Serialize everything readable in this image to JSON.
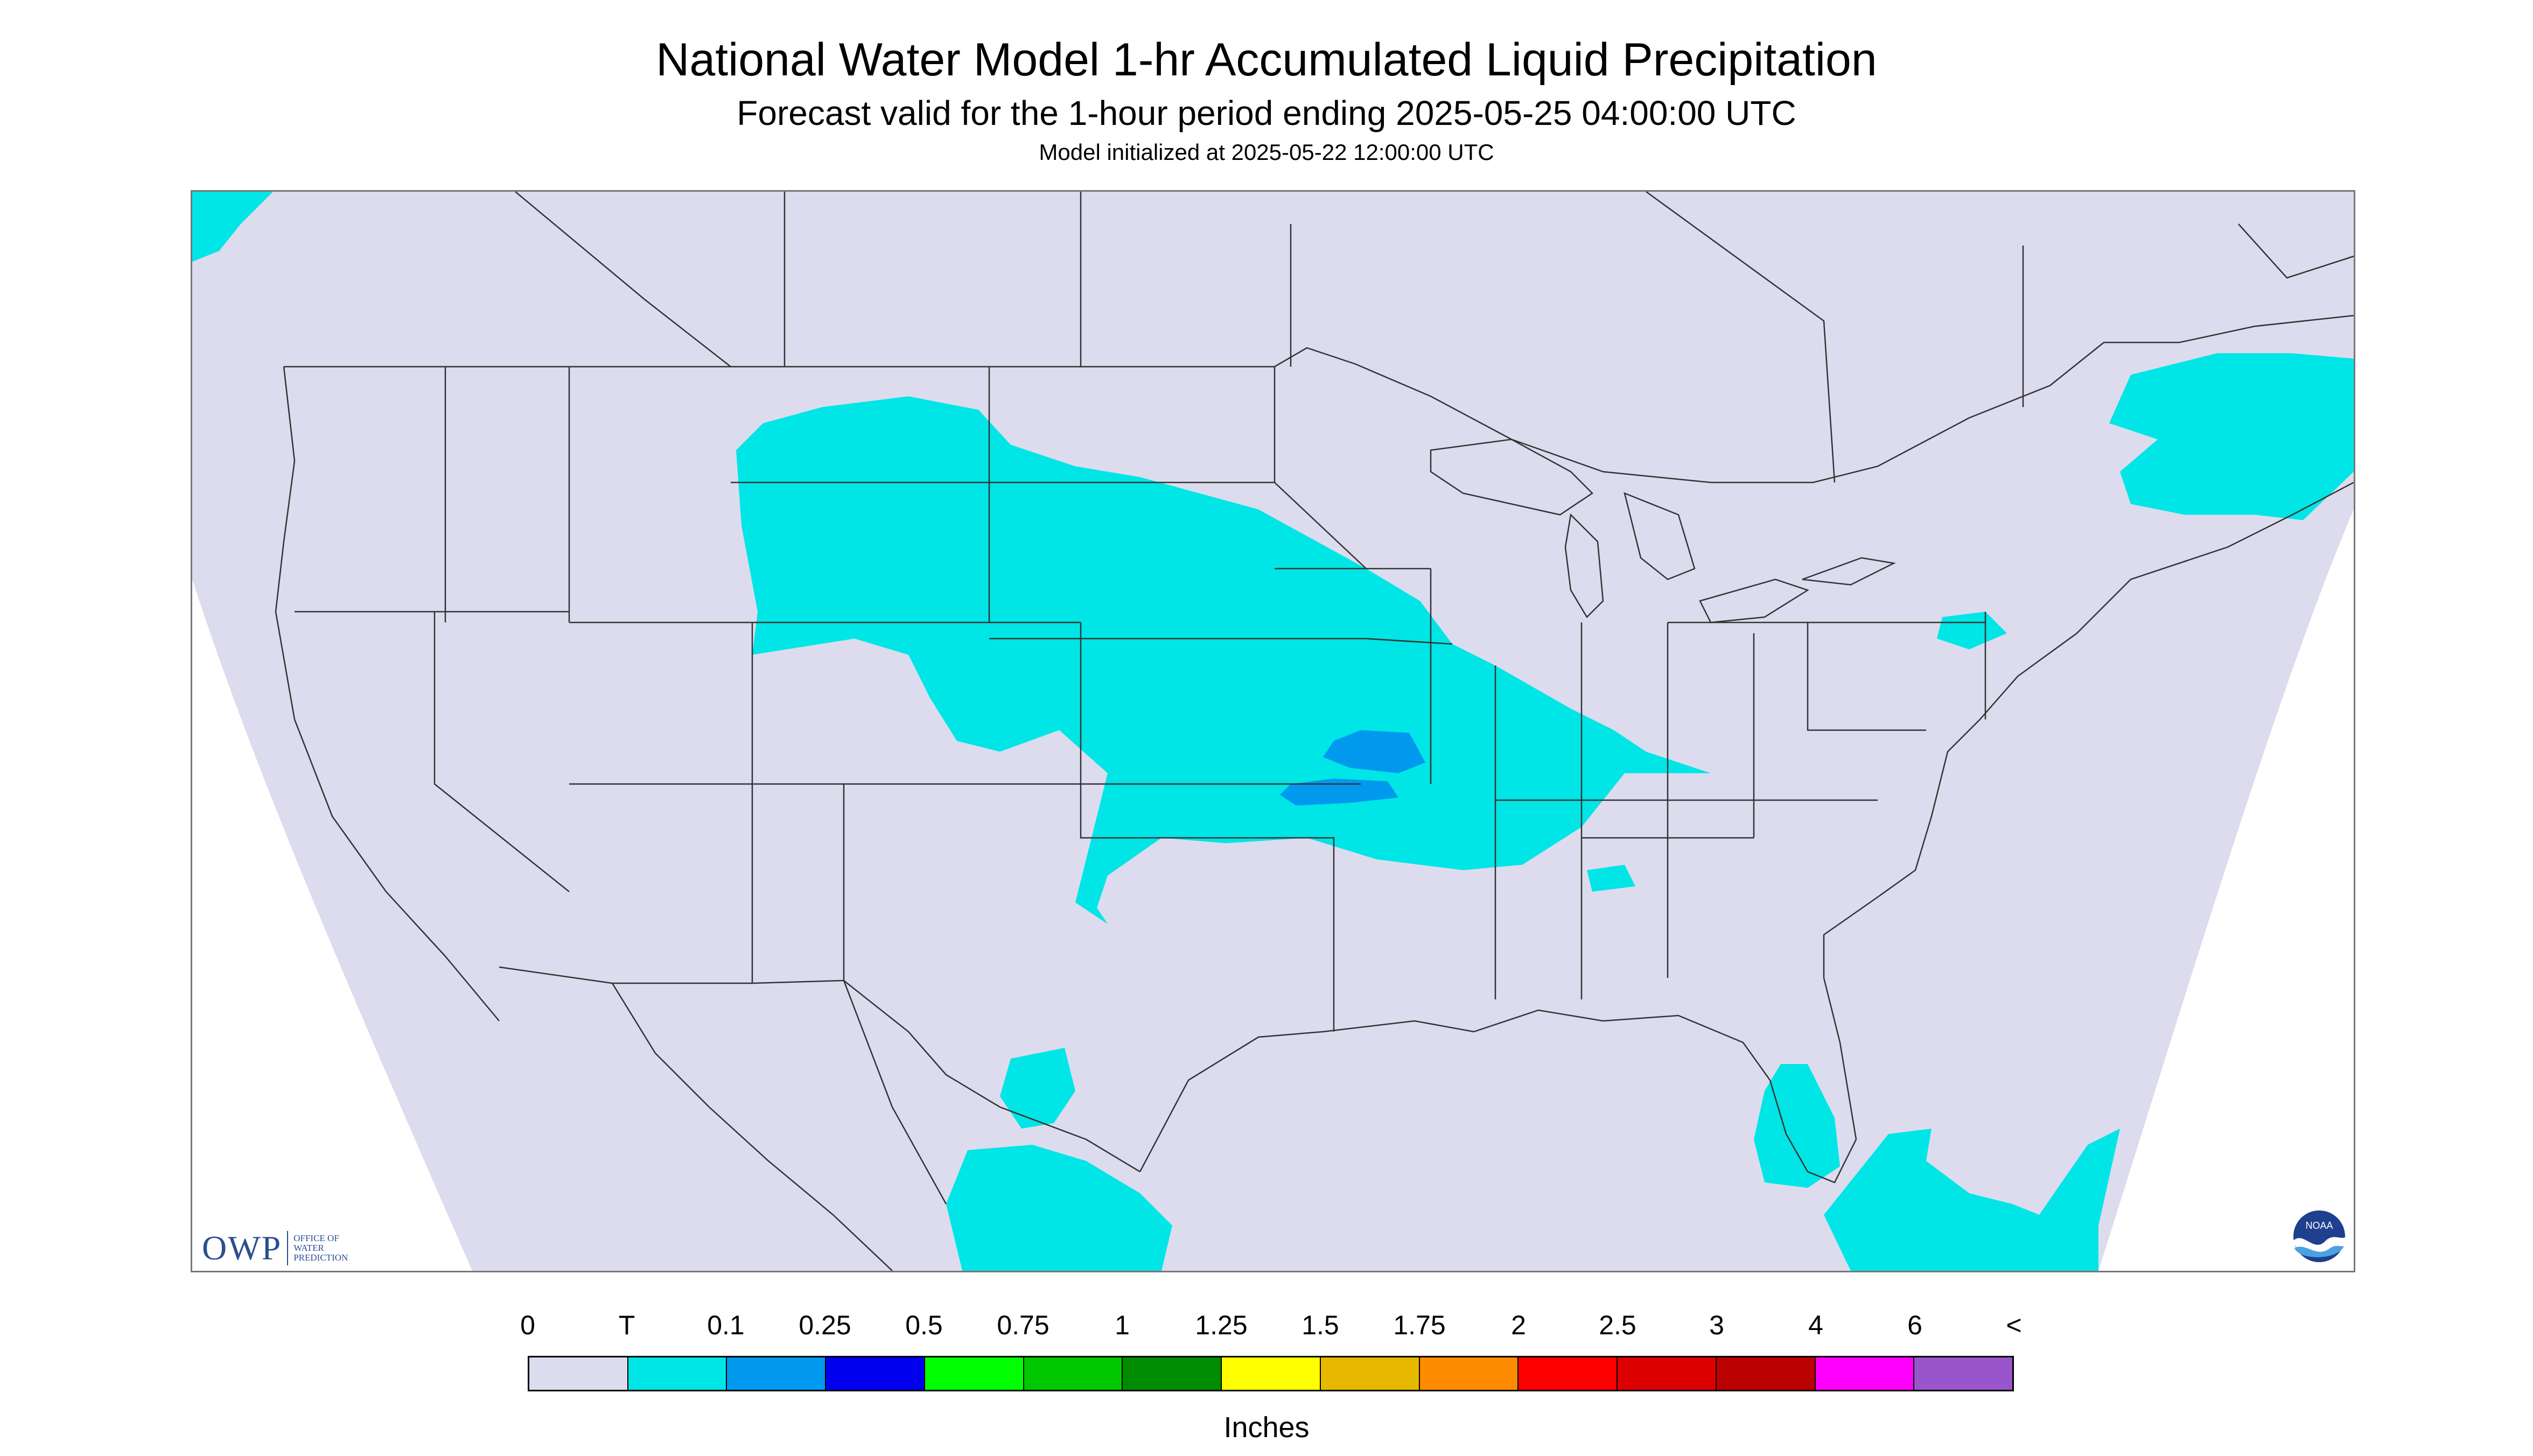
{
  "title": "National Water Model 1-hr Accumulated Liquid Precipitation",
  "subtitle": "Forecast valid for the 1-hour period ending 2025-05-25 04:00:00 UTC",
  "init": "Model initialized at 2025-05-22 12:00:00 UTC",
  "colors": {
    "map_domain": "#dcdcee",
    "precip_trace": "#00e5e5",
    "precip_01": "#0099ee",
    "boundary": "#333333"
  },
  "logo": {
    "owp_text": "OWP",
    "owp_sub": [
      "Office of",
      "Water",
      "Prediction"
    ],
    "noaa_text": "NOAA"
  },
  "legend": {
    "labels": [
      "0",
      "T",
      "0.1",
      "0.25",
      "0.5",
      "0.75",
      "1",
      "1.25",
      "1.5",
      "1.75",
      "2",
      "2.5",
      "3",
      "4",
      "6",
      "<"
    ],
    "colors": [
      "#dcdcee",
      "#00e5e5",
      "#0099ee",
      "#0000ee",
      "#00ff00",
      "#00c800",
      "#008c00",
      "#ffff00",
      "#e6b800",
      "#ff8c00",
      "#ff0000",
      "#dd0000",
      "#bb0000",
      "#ff00ff",
      "#9955cc"
    ],
    "units": "Inches"
  }
}
